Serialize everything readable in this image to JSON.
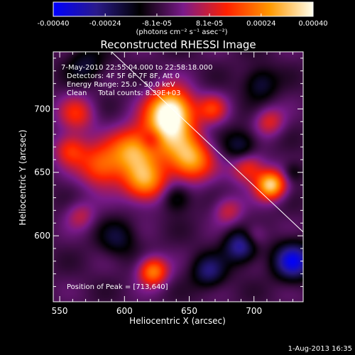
{
  "colorbar": {
    "tick_labels": [
      "-0.00040",
      "-0.00024",
      "-8.1e-05",
      "8.1e-05",
      "0.00024",
      "0.00040"
    ],
    "ticks": [
      -0.0004,
      -0.00024,
      -8.1e-05,
      8.1e-05,
      0.00024,
      0.0004
    ],
    "range": [
      -0.0004,
      0.0004
    ],
    "unit_label": "(photons cm⁻² s⁻¹ asec⁻²)",
    "colors": [
      "#0000ff",
      "#2a1a8a",
      "#000000",
      "#7a1a8a",
      "#ff2000",
      "#ff9900",
      "#ffffee"
    ]
  },
  "chart_data": {
    "type": "heatmap",
    "title": "Reconstructed RHESSI Image",
    "xlabel": "Heliocentric X (arcsec)",
    "ylabel": "Heliocentric Y (arcsec)",
    "xlim": [
      545,
      738
    ],
    "ylim": [
      548,
      745
    ],
    "x_ticks": [
      550,
      600,
      650,
      700
    ],
    "y_ticks": [
      600,
      650,
      700
    ],
    "x_tick_labels": [
      "550",
      "600",
      "650",
      "700"
    ],
    "y_tick_labels": [
      "600",
      "650",
      "700"
    ],
    "limb_line": [
      [
        590,
        745
      ],
      [
        738,
        603
      ]
    ],
    "peak": [
      713,
      640
    ],
    "sources": [
      {
        "x": 636,
        "y": 700,
        "v": 0.0004,
        "s": 12
      },
      {
        "x": 633,
        "y": 682,
        "v": 0.0003,
        "s": 14
      },
      {
        "x": 606,
        "y": 668,
        "v": 0.0003,
        "s": 12
      },
      {
        "x": 651,
        "y": 660,
        "v": 0.00034,
        "s": 12
      },
      {
        "x": 616,
        "y": 643,
        "v": 0.00032,
        "s": 12
      },
      {
        "x": 582,
        "y": 655,
        "v": 0.00026,
        "s": 12
      },
      {
        "x": 563,
        "y": 696,
        "v": 0.00018,
        "s": 10
      },
      {
        "x": 558,
        "y": 668,
        "v": 0.0002,
        "s": 9
      },
      {
        "x": 713,
        "y": 640,
        "v": 0.0004,
        "s": 8
      },
      {
        "x": 695,
        "y": 654,
        "v": 0.00022,
        "s": 9
      },
      {
        "x": 668,
        "y": 700,
        "v": 0.00018,
        "s": 8
      },
      {
        "x": 680,
        "y": 620,
        "v": 0.00014,
        "s": 8
      },
      {
        "x": 622,
        "y": 572,
        "v": 0.0003,
        "s": 8
      },
      {
        "x": 566,
        "y": 616,
        "v": 0.00012,
        "s": 8
      },
      {
        "x": 700,
        "y": 600,
        "v": 0.00012,
        "s": 7
      },
      {
        "x": 712,
        "y": 690,
        "v": 0.00016,
        "s": 8
      },
      {
        "x": 730,
        "y": 580,
        "v": -0.0003,
        "s": 10
      },
      {
        "x": 690,
        "y": 592,
        "v": -0.00024,
        "s": 9
      },
      {
        "x": 665,
        "y": 572,
        "v": -0.00018,
        "s": 9
      },
      {
        "x": 595,
        "y": 598,
        "v": -0.00012,
        "s": 10
      },
      {
        "x": 640,
        "y": 630,
        "v": -0.00014,
        "s": 8
      },
      {
        "x": 621,
        "y": 676,
        "v": -0.00012,
        "s": 6
      },
      {
        "x": 690,
        "y": 670,
        "v": -0.00016,
        "s": 9
      },
      {
        "x": 705,
        "y": 720,
        "v": -0.00014,
        "s": 9
      },
      {
        "x": 570,
        "y": 735,
        "v": -0.00012,
        "s": 10
      },
      {
        "x": 730,
        "y": 650,
        "v": -0.0001,
        "s": 6
      }
    ]
  },
  "info": {
    "time_range": "7-May-2010 22:55:04.000 to 22:58:18.000",
    "detectors": "Detectors: 4F 5F 6F 7F 8F, Att 0",
    "energy_range": "Energy Range: 25.0 - 50.0 keV",
    "clean": "Clean     Total counts: 8.39E+03",
    "peak_text": "Position of Peak = [713,640]"
  },
  "footer": {
    "date": "1-Aug-2013 16:35"
  }
}
